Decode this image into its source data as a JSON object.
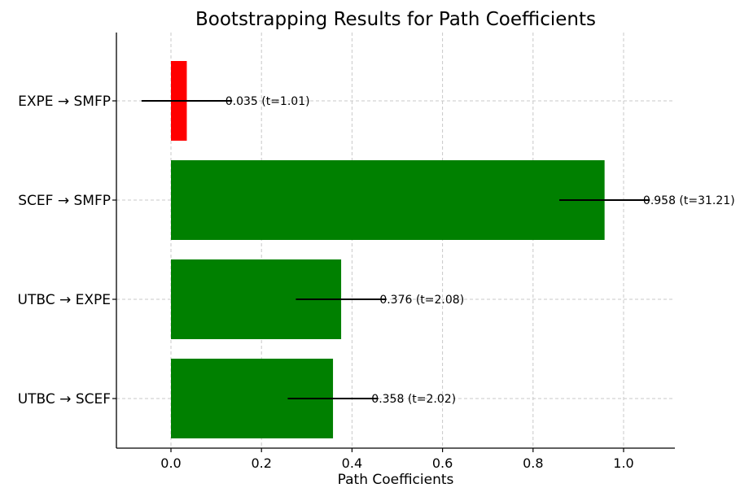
{
  "chart_data": {
    "type": "bar",
    "orientation": "horizontal",
    "title": "Bootstrapping Results for Path Coefficients",
    "xlabel": "Path Coefficients",
    "ylabel": "",
    "xlim": [
      -0.12,
      1.115
    ],
    "xticks": [
      0.0,
      0.2,
      0.4,
      0.6,
      0.8,
      1.0
    ],
    "xtick_labels": [
      "0.0",
      "0.2",
      "0.4",
      "0.6",
      "0.8",
      "1.0"
    ],
    "grid": true,
    "categories": [
      "UTBC → SCEF",
      "UTBC → EXPE",
      "SCEF → SMFP",
      "EXPE → SMFP"
    ],
    "values": [
      0.358,
      0.376,
      0.958,
      0.035
    ],
    "errors": [
      0.1,
      0.1,
      0.1,
      0.1
    ],
    "colors": [
      "#008000",
      "#008000",
      "#008000",
      "#ff0000"
    ],
    "data_labels": [
      "0.358 (t=2.02)",
      "0.376 (t=2.08)",
      "0.958 (t=31.21)",
      "0.035 (t=1.01)"
    ]
  }
}
